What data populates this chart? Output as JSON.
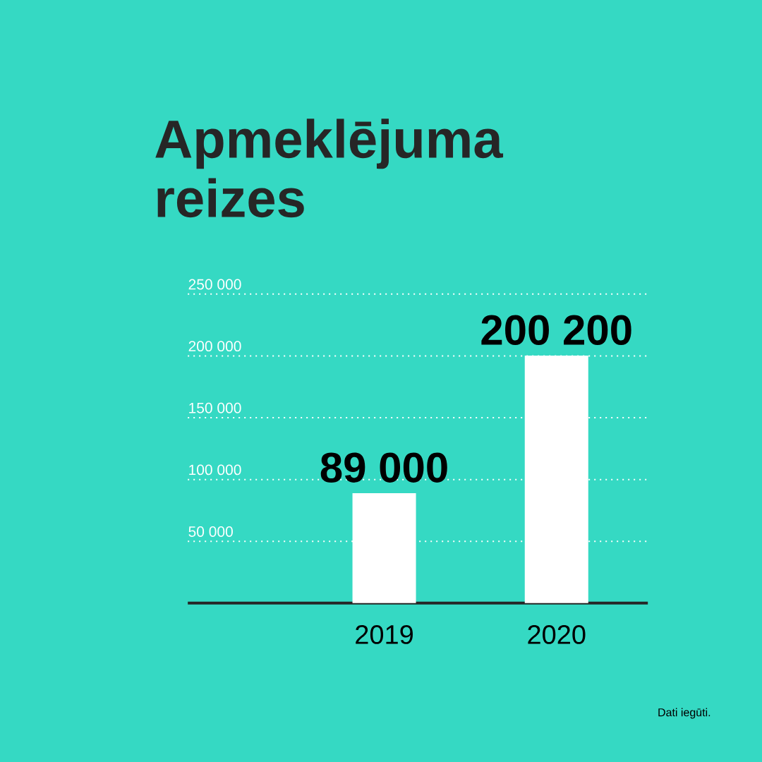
{
  "chart_data": {
    "type": "bar",
    "title": "Apmeklējuma reizes",
    "categories": [
      "2019",
      "2020"
    ],
    "values": [
      89000,
      200200
    ],
    "color": "#ffffff",
    "value_labels": [
      "89 000",
      "200 200"
    ],
    "ylim": [
      0,
      250000
    ],
    "yticks": [
      {
        "value": 50000,
        "label": "50 000"
      },
      {
        "value": 100000,
        "label": "100 000"
      },
      {
        "value": 150000,
        "label": "150 000"
      },
      {
        "value": 200000,
        "label": "200 000"
      },
      {
        "value": 250000,
        "label": "250 000"
      }
    ],
    "grid": "y",
    "annotations": [
      "Dati iegūti."
    ]
  }
}
